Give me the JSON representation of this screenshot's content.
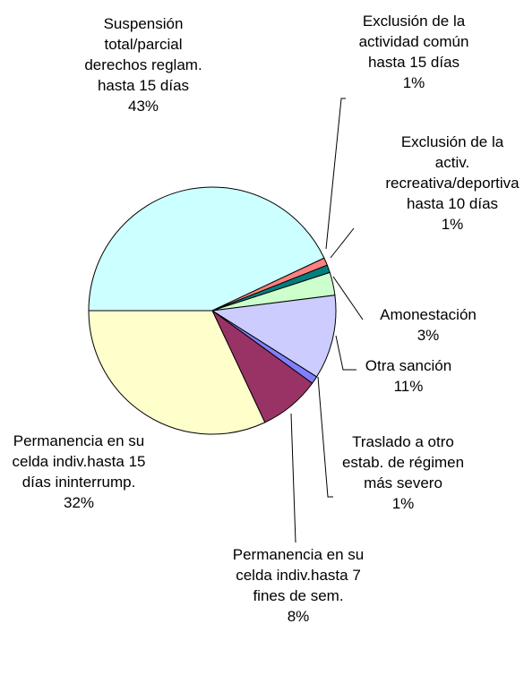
{
  "chart_data": {
    "type": "pie",
    "categories": [
      "Suspensión total/parcial derechos reglam. hasta 15 días",
      "Exclusión de la actividad común hasta 15 días",
      "Exclusión de la activ. recreativa/deportiva hasta 10 días",
      "Amonestación",
      "Otra sanción",
      "Traslado a otro estab. de régimen más severo",
      "Permanencia en su celda indiv.hasta 7 fines de sem.",
      "Permanencia en su celda indiv.hasta 15 días ininterrump."
    ],
    "values": [
      43,
      1,
      1,
      3,
      11,
      1,
      8,
      32
    ],
    "value_labels": [
      "43%",
      "1%",
      "1%",
      "3%",
      "11%",
      "1%",
      "8%",
      "32%"
    ],
    "colors": [
      "#ccffff",
      "#ff8080",
      "#008080",
      "#ccffcc",
      "#ccccff",
      "#8080ff",
      "#993366",
      "#ffffcc"
    ]
  }
}
